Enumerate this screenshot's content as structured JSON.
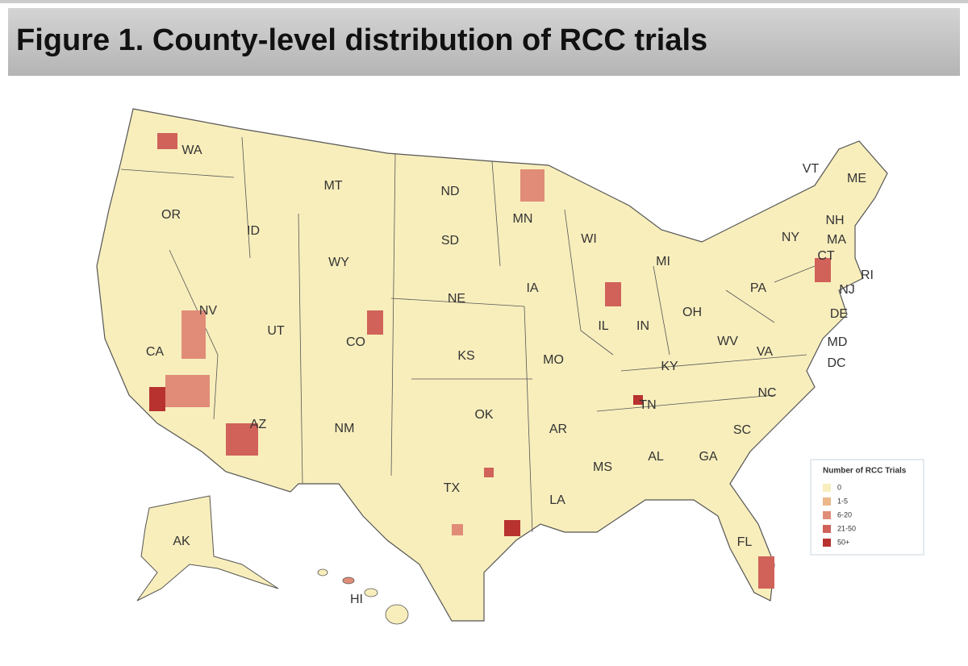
{
  "header": {
    "title": "Figure 1. County-level distribution of RCC trials"
  },
  "map": {
    "state_labels": [
      "WA",
      "OR",
      "MT",
      "ID",
      "WY",
      "ND",
      "SD",
      "MN",
      "WI",
      "MI",
      "NY",
      "VT",
      "ME",
      "NH",
      "MA",
      "CT",
      "RI",
      "NJ",
      "DE",
      "MD",
      "DC",
      "PA",
      "OH",
      "IN",
      "IL",
      "IA",
      "NE",
      "CO",
      "UT",
      "NV",
      "CA",
      "AZ",
      "NM",
      "KS",
      "MO",
      "OK",
      "TX",
      "AR",
      "LA",
      "MS",
      "AL",
      "GA",
      "TN",
      "KY",
      "WV",
      "VA",
      "NC",
      "SC",
      "FL",
      "AK",
      "HI"
    ]
  },
  "legend": {
    "title": "Number of RCC Trials",
    "items": [
      {
        "label": "0",
        "color": "#f8eebc"
      },
      {
        "label": "1-5",
        "color": "#ecb88a"
      },
      {
        "label": "6-20",
        "color": "#e08c78"
      },
      {
        "label": "21-50",
        "color": "#d0625a"
      },
      {
        "label": "50+",
        "color": "#b83230"
      }
    ]
  }
}
